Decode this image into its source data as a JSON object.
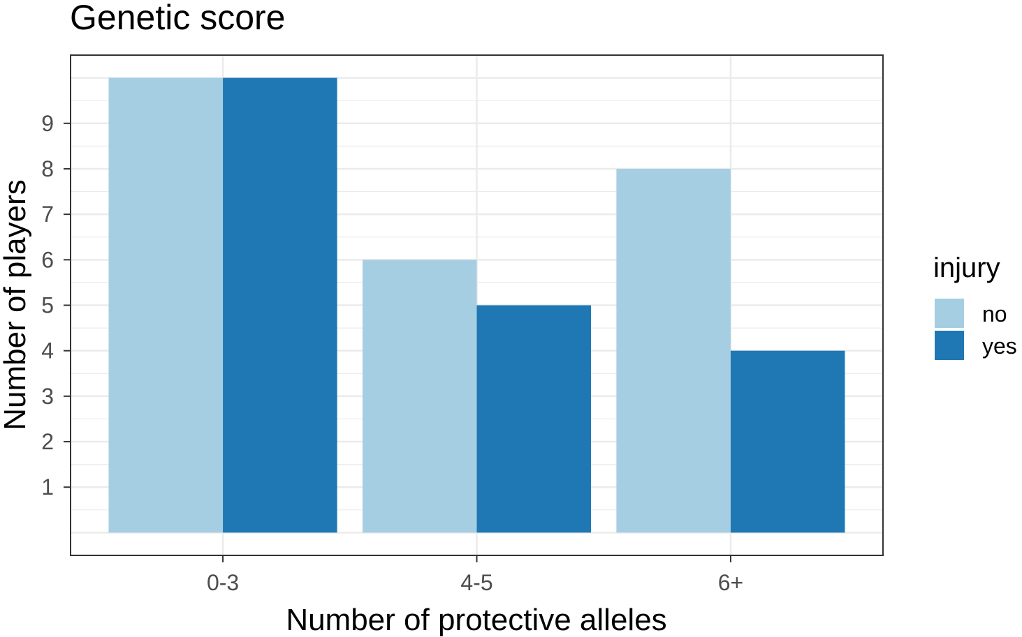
{
  "chart_data": {
    "type": "bar",
    "title": "Genetic score",
    "xlabel": "Number of protective alleles",
    "ylabel": "Number of players",
    "categories": [
      "0-3",
      "4-5",
      "6+"
    ],
    "series": [
      {
        "name": "no",
        "values": [
          10,
          6,
          8
        ],
        "color": "#a6cee3"
      },
      {
        "name": "yes",
        "values": [
          10,
          5,
          4
        ],
        "color": "#1f78b4"
      }
    ],
    "yticks": [
      1,
      2,
      3,
      4,
      5,
      6,
      7,
      8,
      9
    ],
    "ylim": [
      -0.5,
      10.5
    ],
    "grid": true,
    "legend": {
      "title": "injury",
      "placement": "right"
    }
  }
}
